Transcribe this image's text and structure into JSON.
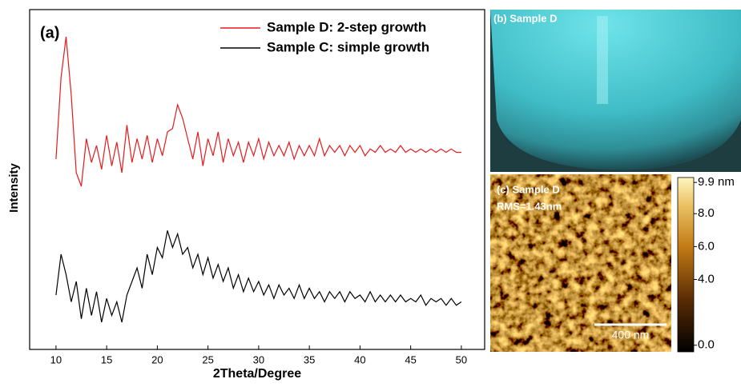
{
  "chart_data": {
    "type": "line",
    "panel_label": "(a)",
    "xlabel": "2Theta/Degree",
    "ylabel": "Intensity",
    "xlim": [
      7.4,
      52.3
    ],
    "xticks": [
      10,
      15,
      20,
      25,
      30,
      35,
      40,
      45,
      50
    ],
    "ylim": [
      0,
      100
    ],
    "grid": false,
    "legend": "upper right",
    "x": [
      10,
      10.5,
      11,
      11.5,
      12,
      12.5,
      13,
      13.5,
      14,
      14.5,
      15,
      15.5,
      16,
      16.5,
      17,
      17.5,
      18,
      18.5,
      19,
      19.5,
      20,
      20.5,
      21,
      21.5,
      22,
      22.5,
      23,
      23.5,
      24,
      24.5,
      25,
      25.5,
      26,
      26.5,
      27,
      27.5,
      28,
      28.5,
      29,
      29.5,
      30,
      30.5,
      31,
      31.5,
      32,
      32.5,
      33,
      33.5,
      34,
      34.5,
      35,
      35.5,
      36,
      36.5,
      37,
      37.5,
      38,
      38.5,
      39,
      39.5,
      40,
      40.5,
      41,
      41.5,
      42,
      42.5,
      43,
      43.5,
      44,
      44.5,
      45,
      45.5,
      46,
      46.5,
      47,
      47.5,
      48,
      48.5,
      49,
      49.5,
      50
    ],
    "series": [
      {
        "name": "Sample D: 2-step growth",
        "color": "#e8191c",
        "values": [
          56,
          80,
          92,
          75,
          52,
          48,
          62,
          55,
          60,
          53,
          63,
          54,
          61,
          52,
          66,
          55,
          62,
          56,
          63,
          55,
          62,
          57,
          64,
          65,
          72,
          68,
          62,
          56,
          64,
          54,
          62,
          57,
          64,
          55,
          62,
          57,
          61,
          55,
          61,
          57,
          62,
          56,
          61,
          57,
          60,
          57,
          61,
          56,
          60,
          57,
          60,
          57,
          62,
          57,
          60,
          58,
          60,
          57,
          60,
          58,
          60,
          57,
          59,
          58,
          60,
          58,
          59,
          58,
          60,
          58,
          59,
          58,
          59,
          58,
          59,
          58,
          59,
          58,
          59,
          58,
          58
        ]
      },
      {
        "name": "Sample C: simple growth",
        "color": "#000000",
        "values": [
          16,
          28,
          22,
          14,
          20,
          9,
          18,
          10,
          17,
          8,
          15,
          10,
          14,
          8,
          16,
          20,
          24,
          18,
          28,
          22,
          30,
          27,
          35,
          30,
          34,
          28,
          30,
          24,
          28,
          22,
          27,
          21,
          25,
          20,
          24,
          18,
          22,
          17,
          21,
          17,
          20,
          16,
          19,
          15,
          19,
          16,
          18,
          15,
          19,
          15,
          18,
          15,
          17,
          14,
          17,
          15,
          17,
          14,
          17,
          15,
          16,
          14,
          17,
          14,
          16,
          14,
          16,
          14,
          16,
          14,
          15,
          14,
          16,
          13,
          15,
          14,
          15,
          13,
          15,
          13,
          14
        ]
      }
    ]
  },
  "images": {
    "rheed": {
      "label": "(b) Sample D"
    },
    "afm": {
      "label": "(c) Sample D",
      "rms": "RMS=1.43nm",
      "scale_bar": "400 nm",
      "colorbar": {
        "range": [
          -0.4,
          10.2
        ],
        "ticks": [
          {
            "value": 9.9,
            "label": "9.9 nm"
          },
          {
            "value": 8.0,
            "label": "8.0"
          },
          {
            "value": 6.0,
            "label": "6.0"
          },
          {
            "value": 4.0,
            "label": "4.0"
          },
          {
            "value": 0.0,
            "label": "0.0"
          }
        ]
      }
    }
  }
}
